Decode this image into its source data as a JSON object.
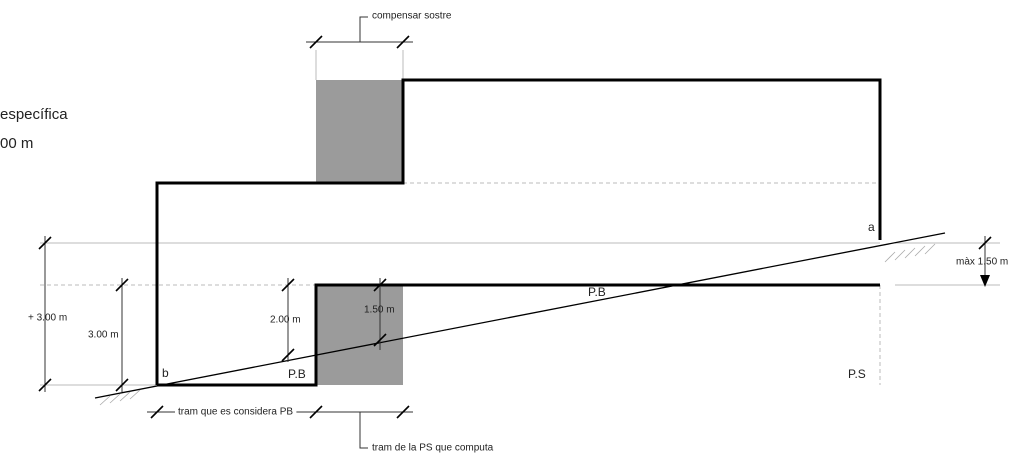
{
  "annotations": {
    "top_dimension": "compensar sostre",
    "side_heading": "específica",
    "side_value": "00 m",
    "point_a": "a",
    "point_b": "b",
    "max_height": "màx 1.50 m",
    "plus_height": "+ 3.00 m",
    "height_left": "3.00 m",
    "height_step": "2.00 m",
    "height_mid": "1.50 m",
    "floor_pb_upper": "P.B",
    "floor_pb_lower": "P.B",
    "floor_ps": "P.S",
    "bottom_dimension_pb": "tram que es considera PB",
    "bottom_dimension_ps": "tram de la PS que computa"
  }
}
